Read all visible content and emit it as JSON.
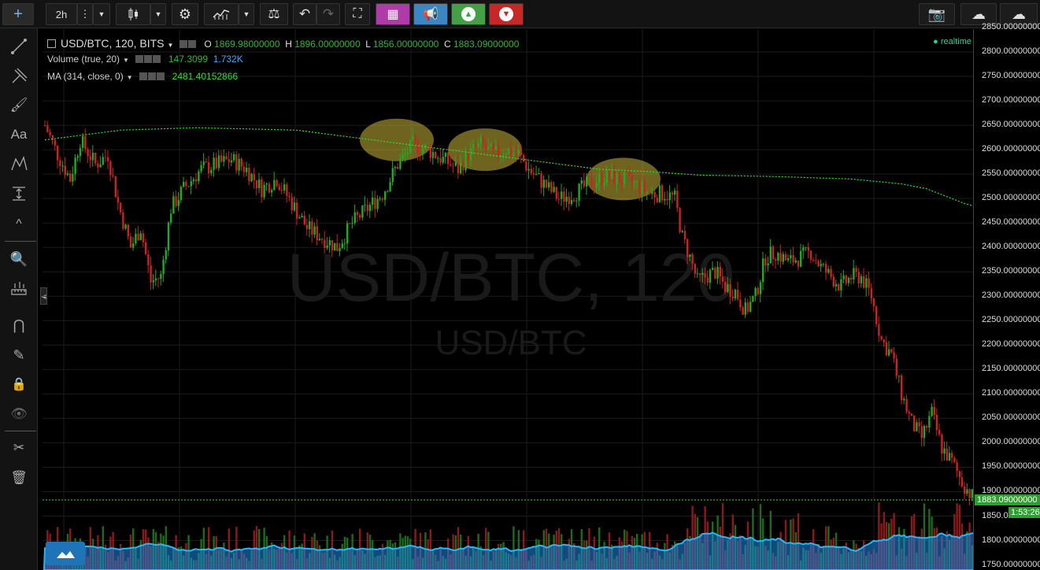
{
  "toolbar": {
    "interval": "2h"
  },
  "legend": {
    "symbol": "USD/BTC, 120, BITS",
    "o_label": "O",
    "o_value": "1869.98000000",
    "h_label": "H",
    "h_value": "1896.00000000",
    "l_label": "L",
    "l_value": "1856.00000000",
    "c_label": "C",
    "c_value": "1883.09000000",
    "volume_title": "Volume (true, 20)",
    "volume_value": "147.3099",
    "volume_ma": "1.732K",
    "ma_title": "MA (314, close, 0)",
    "ma_value": "2481.40152866",
    "realtime": "realtime"
  },
  "watermark": {
    "big": "USD/BTC, 120",
    "small": "USD/BTC"
  },
  "price_axis": {
    "ticks": [
      "2850.00000000",
      "2800.00000000",
      "2750.00000000",
      "2700.00000000",
      "2650.00000000",
      "2600.00000000",
      "2550.00000000",
      "2500.00000000",
      "2450.00000000",
      "2400.00000000",
      "2350.00000000",
      "2300.00000000",
      "2250.00000000",
      "2200.00000000",
      "2150.00000000",
      "2100.00000000",
      "2050.00000000",
      "2000.00000000",
      "1950.00000000",
      "1900.00000000",
      "1850.00000000",
      "1800.00000000",
      "1750.00000000"
    ],
    "last_price": "1883.09000000",
    "countdown": "1:53:26"
  },
  "colors": {
    "up": "#22aa22",
    "down": "#cc2222",
    "ma": "#33dd33",
    "volume_area": "#1e88e5",
    "highlight": "#c8b73a",
    "background": "#000000"
  },
  "chart_data": {
    "type": "candlestick",
    "ylim": [
      1750,
      2850
    ],
    "x": "bars",
    "ma_period": 314,
    "close_anchors": [
      [
        0,
        2650
      ],
      [
        5,
        2590
      ],
      [
        10,
        2540
      ],
      [
        14,
        2620
      ],
      [
        20,
        2570
      ],
      [
        25,
        2590
      ],
      [
        29,
        2490
      ],
      [
        34,
        2400
      ],
      [
        38,
        2440
      ],
      [
        42,
        2330
      ],
      [
        46,
        2340
      ],
      [
        50,
        2480
      ],
      [
        55,
        2520
      ],
      [
        62,
        2560
      ],
      [
        68,
        2570
      ],
      [
        74,
        2580
      ],
      [
        80,
        2560
      ],
      [
        86,
        2520
      ],
      [
        92,
        2540
      ],
      [
        98,
        2490
      ],
      [
        104,
        2440
      ],
      [
        110,
        2420
      ],
      [
        116,
        2400
      ],
      [
        122,
        2450
      ],
      [
        128,
        2480
      ],
      [
        134,
        2510
      ],
      [
        140,
        2570
      ],
      [
        146,
        2610
      ],
      [
        152,
        2600
      ],
      [
        158,
        2580
      ],
      [
        164,
        2560
      ],
      [
        168,
        2590
      ],
      [
        173,
        2610
      ],
      [
        178,
        2590
      ],
      [
        183,
        2600
      ],
      [
        188,
        2590
      ],
      [
        192,
        2560
      ],
      [
        198,
        2530
      ],
      [
        204,
        2500
      ],
      [
        210,
        2510
      ],
      [
        216,
        2530
      ],
      [
        222,
        2545
      ],
      [
        228,
        2540
      ],
      [
        234,
        2530
      ],
      [
        240,
        2510
      ],
      [
        246,
        2510
      ],
      [
        250,
        2500
      ],
      [
        253,
        2420
      ],
      [
        256,
        2380
      ],
      [
        259,
        2330
      ],
      [
        262,
        2340
      ],
      [
        266,
        2350
      ],
      [
        270,
        2320
      ],
      [
        274,
        2310
      ],
      [
        278,
        2270
      ],
      [
        282,
        2300
      ],
      [
        286,
        2380
      ],
      [
        290,
        2390
      ],
      [
        295,
        2370
      ],
      [
        300,
        2380
      ],
      [
        304,
        2390
      ],
      [
        308,
        2360
      ],
      [
        312,
        2340
      ],
      [
        316,
        2320
      ],
      [
        320,
        2340
      ],
      [
        324,
        2340
      ],
      [
        328,
        2300
      ],
      [
        332,
        2210
      ],
      [
        336,
        2180
      ],
      [
        340,
        2100
      ],
      [
        344,
        2040
      ],
      [
        348,
        2010
      ],
      [
        352,
        2060
      ],
      [
        356,
        1990
      ],
      [
        360,
        1960
      ],
      [
        364,
        1920
      ],
      [
        368,
        1890
      ],
      [
        372,
        1883
      ]
    ],
    "ma_anchors": [
      [
        0,
        2620
      ],
      [
        30,
        2640
      ],
      [
        60,
        2645
      ],
      [
        100,
        2640
      ],
      [
        130,
        2620
      ],
      [
        160,
        2600
      ],
      [
        190,
        2580
      ],
      [
        220,
        2560
      ],
      [
        240,
        2555
      ],
      [
        260,
        2548
      ],
      [
        290,
        2545
      ],
      [
        320,
        2540
      ],
      [
        340,
        2530
      ],
      [
        350,
        2520
      ],
      [
        365,
        2490
      ],
      [
        372,
        2480
      ]
    ],
    "volume": {
      "max": 1800
    }
  }
}
